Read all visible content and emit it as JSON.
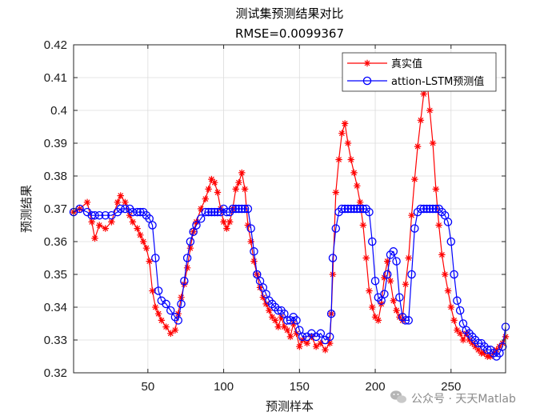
{
  "chart_data": {
    "type": "line",
    "title": "测试集预测结果对比",
    "subtitle": "RMSE=0.0099367",
    "xlabel": "预测样本",
    "ylabel": "预测结果",
    "xlim": [
      1,
      286
    ],
    "ylim": [
      0.32,
      0.42
    ],
    "xticks": [
      50,
      100,
      150,
      200,
      250
    ],
    "xtick_labels": [
      "50",
      "100",
      "150",
      "200",
      "250"
    ],
    "yticks": [
      0.32,
      0.33,
      0.34,
      0.35,
      0.36,
      0.37,
      0.38,
      0.39,
      0.4,
      0.41,
      0.42
    ],
    "ytick_labels": [
      "0.32",
      "0.33",
      "0.34",
      "0.35",
      "0.36",
      "0.37",
      "0.38",
      "0.39",
      "0.4",
      "0.41",
      "0.42"
    ],
    "grid": true,
    "legend_position": "top-right",
    "series": [
      {
        "name": "真实值",
        "color": "#ff0000",
        "marker": "asterisk",
        "x": [
          1,
          5,
          10,
          13,
          15,
          18,
          22,
          26,
          30,
          32,
          35,
          38,
          40,
          43,
          45,
          47,
          49,
          51,
          53,
          55,
          57,
          59,
          62,
          65,
          68,
          70,
          72,
          74,
          76,
          78,
          80,
          82,
          85,
          88,
          90,
          92,
          94,
          96,
          98,
          100,
          102,
          104,
          106,
          108,
          110,
          112,
          114,
          116,
          118,
          120,
          122,
          124,
          126,
          128,
          130,
          132,
          134,
          136,
          138,
          140,
          142,
          144,
          146,
          148,
          150,
          152,
          155,
          158,
          161,
          164,
          167,
          170,
          171,
          172,
          174,
          176,
          178,
          180,
          182,
          184,
          186,
          188,
          190,
          192,
          194,
          196,
          198,
          200,
          202,
          204,
          206,
          208,
          210,
          212,
          214,
          216,
          218,
          220,
          222,
          224,
          226,
          228,
          230,
          232,
          234,
          236,
          238,
          240,
          242,
          244,
          246,
          248,
          250,
          252,
          254,
          256,
          258,
          260,
          262,
          264,
          266,
          268,
          270,
          272,
          274,
          276,
          278,
          280,
          282,
          284,
          286
        ],
        "values": [
          0.369,
          0.37,
          0.372,
          0.366,
          0.361,
          0.365,
          0.364,
          0.366,
          0.372,
          0.374,
          0.372,
          0.368,
          0.366,
          0.364,
          0.362,
          0.36,
          0.358,
          0.354,
          0.345,
          0.34,
          0.338,
          0.336,
          0.334,
          0.332,
          0.333,
          0.338,
          0.343,
          0.347,
          0.352,
          0.358,
          0.363,
          0.366,
          0.37,
          0.373,
          0.376,
          0.379,
          0.378,
          0.375,
          0.37,
          0.366,
          0.364,
          0.366,
          0.37,
          0.376,
          0.378,
          0.381,
          0.376,
          0.365,
          0.36,
          0.354,
          0.35,
          0.346,
          0.343,
          0.341,
          0.339,
          0.337,
          0.336,
          0.334,
          0.337,
          0.334,
          0.333,
          0.331,
          0.335,
          0.332,
          0.328,
          0.33,
          0.329,
          0.331,
          0.328,
          0.329,
          0.327,
          0.329,
          0.338,
          0.35,
          0.375,
          0.385,
          0.393,
          0.396,
          0.39,
          0.385,
          0.381,
          0.377,
          0.372,
          0.365,
          0.355,
          0.345,
          0.34,
          0.337,
          0.336,
          0.341,
          0.349,
          0.354,
          0.348,
          0.342,
          0.339,
          0.337,
          0.336,
          0.347,
          0.355,
          0.368,
          0.379,
          0.389,
          0.397,
          0.405,
          0.41,
          0.4,
          0.39,
          0.376,
          0.365,
          0.356,
          0.35,
          0.345,
          0.34,
          0.336,
          0.333,
          0.332,
          0.33,
          0.332,
          0.33,
          0.329,
          0.328,
          0.327,
          0.326,
          0.326,
          0.325,
          0.325,
          0.326,
          0.327,
          0.328,
          0.329,
          0.331
        ]
      },
      {
        "name": "attion-LSTM预测值",
        "color": "#0000ff",
        "marker": "circle",
        "x": [
          1,
          5,
          10,
          13,
          15,
          18,
          22,
          26,
          30,
          32,
          35,
          38,
          40,
          43,
          45,
          47,
          49,
          51,
          53,
          55,
          57,
          59,
          62,
          65,
          68,
          70,
          72,
          74,
          76,
          78,
          80,
          82,
          85,
          88,
          90,
          92,
          94,
          96,
          98,
          100,
          102,
          104,
          106,
          108,
          110,
          112,
          114,
          116,
          118,
          120,
          122,
          124,
          126,
          128,
          130,
          132,
          134,
          136,
          138,
          140,
          142,
          144,
          146,
          148,
          150,
          152,
          155,
          158,
          161,
          164,
          167,
          170,
          171,
          172,
          174,
          176,
          178,
          180,
          182,
          184,
          186,
          188,
          190,
          192,
          194,
          196,
          198,
          200,
          202,
          204,
          206,
          208,
          210,
          212,
          214,
          216,
          218,
          220,
          222,
          224,
          226,
          228,
          230,
          232,
          234,
          236,
          238,
          240,
          242,
          244,
          246,
          248,
          250,
          252,
          254,
          256,
          258,
          260,
          262,
          264,
          266,
          268,
          270,
          272,
          274,
          276,
          278,
          280,
          282,
          284,
          286
        ],
        "values": [
          0.369,
          0.37,
          0.369,
          0.368,
          0.368,
          0.368,
          0.368,
          0.368,
          0.369,
          0.37,
          0.37,
          0.37,
          0.369,
          0.369,
          0.369,
          0.369,
          0.368,
          0.367,
          0.365,
          0.355,
          0.345,
          0.342,
          0.341,
          0.339,
          0.337,
          0.336,
          0.341,
          0.348,
          0.355,
          0.36,
          0.363,
          0.365,
          0.367,
          0.369,
          0.369,
          0.369,
          0.369,
          0.369,
          0.369,
          0.37,
          0.369,
          0.369,
          0.37,
          0.37,
          0.37,
          0.37,
          0.37,
          0.37,
          0.364,
          0.357,
          0.35,
          0.348,
          0.346,
          0.344,
          0.342,
          0.341,
          0.34,
          0.339,
          0.339,
          0.338,
          0.336,
          0.336,
          0.337,
          0.336,
          0.333,
          0.331,
          0.331,
          0.332,
          0.331,
          0.332,
          0.33,
          0.331,
          0.338,
          0.355,
          0.364,
          0.369,
          0.37,
          0.37,
          0.37,
          0.37,
          0.37,
          0.37,
          0.37,
          0.37,
          0.37,
          0.369,
          0.36,
          0.348,
          0.343,
          0.342,
          0.344,
          0.35,
          0.356,
          0.357,
          0.354,
          0.343,
          0.337,
          0.336,
          0.336,
          0.35,
          0.364,
          0.369,
          0.37,
          0.37,
          0.37,
          0.37,
          0.37,
          0.37,
          0.37,
          0.369,
          0.368,
          0.366,
          0.36,
          0.35,
          0.342,
          0.339,
          0.335,
          0.333,
          0.332,
          0.331,
          0.33,
          0.329,
          0.329,
          0.328,
          0.327,
          0.327,
          0.326,
          0.325,
          0.326,
          0.328,
          0.334
        ]
      }
    ]
  },
  "watermark": {
    "text": "公众号 · 天天Matlab",
    "icon": "wechat-icon"
  }
}
